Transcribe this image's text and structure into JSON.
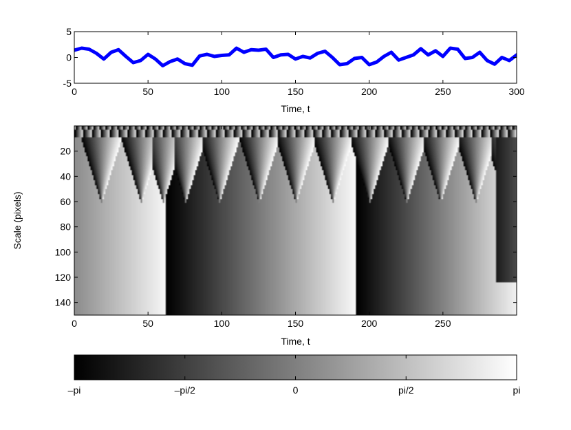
{
  "chart_data": [
    {
      "type": "line",
      "xlabel": "Time, t",
      "ylabel": "",
      "xlim": [
        0,
        300
      ],
      "ylim": [
        -5,
        5
      ],
      "xticks": [
        0,
        50,
        100,
        150,
        200,
        250,
        300
      ],
      "yticks": [
        -5,
        0,
        5
      ],
      "line_color": "#0000ff",
      "series": [
        {
          "x": [
            0,
            5,
            10,
            15,
            20,
            25,
            30,
            35,
            40,
            45,
            50,
            55,
            60,
            65,
            70,
            75,
            80,
            85,
            90,
            95,
            100,
            105,
            110,
            115,
            120,
            125,
            130,
            135,
            140,
            145,
            150,
            155,
            160,
            165,
            170,
            175,
            180,
            185,
            190,
            195,
            200,
            205,
            210,
            215,
            220,
            225,
            230,
            235,
            240,
            245,
            250,
            255,
            260,
            265,
            270,
            275,
            280,
            285,
            290,
            295,
            300
          ],
          "values": [
            1.4,
            1.8,
            1.6,
            0.8,
            -0.3,
            1.0,
            1.5,
            0.2,
            -1.0,
            -0.6,
            0.6,
            -0.3,
            -1.6,
            -0.8,
            -0.3,
            -1.2,
            -1.5,
            0.3,
            0.6,
            0.2,
            0.4,
            0.5,
            1.8,
            1.0,
            1.5,
            1.4,
            1.6,
            0.0,
            0.5,
            0.6,
            -0.3,
            0.2,
            -0.1,
            0.8,
            1.2,
            0.0,
            -1.4,
            -1.2,
            -0.2,
            0.0,
            -1.4,
            -0.9,
            0.2,
            1.0,
            -0.5,
            0.0,
            0.5,
            1.7,
            0.5,
            1.3,
            0.2,
            1.8,
            1.6,
            -0.2,
            0.0,
            1.0,
            -0.6,
            -1.3,
            0.0,
            -0.6,
            0.5
          ]
        }
      ]
    },
    {
      "type": "heatmap",
      "xlabel": "Time, t",
      "ylabel": "Scale (pixels)",
      "xlim": [
        0,
        300
      ],
      "ylim": [
        150,
        0
      ],
      "xticks": [
        0,
        50,
        100,
        150,
        200,
        250
      ],
      "yticks": [
        20,
        40,
        60,
        80,
        100,
        120,
        140
      ],
      "colormap": "gray",
      "value_range": [
        -3.14159,
        3.14159
      ],
      "phase_jumps_large_scale": [
        62,
        191
      ],
      "phase_jumps_mid_scale": [
        18,
        45,
        60,
        75,
        98,
        125,
        150,
        175,
        200,
        225,
        248,
        272,
        292
      ]
    },
    {
      "type": "colorbar",
      "colormap": "gray",
      "tick_labels": [
        "–pi",
        "–pi/2",
        "0",
        "pi/2",
        "pi"
      ]
    }
  ]
}
